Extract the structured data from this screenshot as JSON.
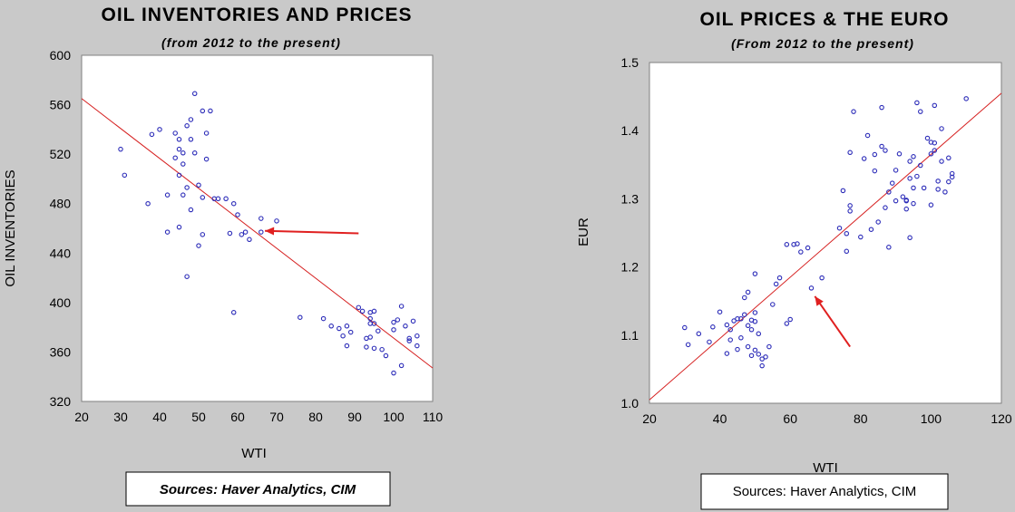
{
  "chart_data": [
    {
      "type": "scatter",
      "title": "OIL INVENTORIES AND PRICES",
      "subtitle": "(from 2012 to the present)",
      "xlabel": "WTI",
      "ylabel": "OIL INVENTORIES",
      "xlim": [
        20,
        110
      ],
      "ylim": [
        320,
        600
      ],
      "xticks": [
        20,
        30,
        40,
        50,
        60,
        70,
        80,
        90,
        100,
        110
      ],
      "yticks": [
        320,
        360,
        400,
        440,
        480,
        520,
        560,
        600
      ],
      "source": "Sources:  Haver Analytics, CIM",
      "grid": false,
      "marker_color": "#2b2bb8",
      "trend_color": "#d62020",
      "arrow_color": "#e02020",
      "trendline": [
        [
          20,
          565
        ],
        [
          110,
          347
        ]
      ],
      "arrow": {
        "from": [
          91,
          456
        ],
        "to": [
          67,
          458
        ]
      },
      "points": [
        [
          30,
          524
        ],
        [
          31,
          503
        ],
        [
          37,
          480
        ],
        [
          38,
          536
        ],
        [
          40,
          540
        ],
        [
          42,
          457
        ],
        [
          42,
          487
        ],
        [
          44,
          537
        ],
        [
          44,
          517
        ],
        [
          45,
          532
        ],
        [
          45,
          524
        ],
        [
          45,
          503
        ],
        [
          45,
          461
        ],
        [
          46,
          521
        ],
        [
          46,
          487
        ],
        [
          46,
          512
        ],
        [
          47,
          543
        ],
        [
          47,
          421
        ],
        [
          47,
          493
        ],
        [
          48,
          548
        ],
        [
          48,
          532
        ],
        [
          48,
          475
        ],
        [
          49,
          569
        ],
        [
          49,
          521
        ],
        [
          50,
          495
        ],
        [
          50,
          446
        ],
        [
          51,
          455
        ],
        [
          51,
          555
        ],
        [
          51,
          485
        ],
        [
          52,
          516
        ],
        [
          52,
          537
        ],
        [
          53,
          555
        ],
        [
          54,
          484
        ],
        [
          55,
          484
        ],
        [
          57,
          484
        ],
        [
          58,
          456
        ],
        [
          59,
          480
        ],
        [
          59,
          392
        ],
        [
          60,
          471
        ],
        [
          61,
          455
        ],
        [
          62,
          457
        ],
        [
          63,
          451
        ],
        [
          66,
          457
        ],
        [
          66,
          468
        ],
        [
          70,
          466
        ],
        [
          76,
          388
        ],
        [
          82,
          387
        ],
        [
          84,
          381
        ],
        [
          86,
          379
        ],
        [
          87,
          373
        ],
        [
          88,
          365
        ],
        [
          88,
          381
        ],
        [
          89,
          376
        ],
        [
          91,
          396
        ],
        [
          92,
          393
        ],
        [
          93,
          371
        ],
        [
          93,
          364
        ],
        [
          94,
          392
        ],
        [
          94,
          387
        ],
        [
          94,
          383
        ],
        [
          94,
          372
        ],
        [
          95,
          363
        ],
        [
          95,
          393
        ],
        [
          95,
          383
        ],
        [
          96,
          377
        ],
        [
          97,
          362
        ],
        [
          98,
          357
        ],
        [
          100,
          343
        ],
        [
          100,
          384
        ],
        [
          100,
          378
        ],
        [
          101,
          386
        ],
        [
          102,
          397
        ],
        [
          102,
          349
        ],
        [
          103,
          381
        ],
        [
          104,
          371
        ],
        [
          104,
          369
        ],
        [
          105,
          385
        ],
        [
          106,
          373
        ],
        [
          106,
          365
        ]
      ]
    },
    {
      "type": "scatter",
      "title": "OIL PRICES & THE EURO",
      "subtitle": "(From 2012 to the present)",
      "xlabel": "WTI",
      "ylabel": "EUR",
      "xlim": [
        20,
        120
      ],
      "ylim": [
        1.0,
        1.5
      ],
      "xticks": [
        20,
        40,
        60,
        80,
        100,
        120
      ],
      "yticks": [
        1.0,
        1.1,
        1.2,
        1.3,
        1.4,
        1.5
      ],
      "source": "Sources:  Haver Analytics, CIM",
      "grid": false,
      "marker_color": "#2b2bb8",
      "trend_color": "#d62020",
      "arrow_color": "#e02020",
      "trendline": [
        [
          20,
          1.005
        ],
        [
          120,
          1.455
        ]
      ],
      "arrow": {
        "from": [
          77,
          1.083
        ],
        "to": [
          67,
          1.157
        ]
      },
      "points": [
        [
          30,
          1.111
        ],
        [
          31,
          1.086
        ],
        [
          34,
          1.102
        ],
        [
          37,
          1.09
        ],
        [
          38,
          1.112
        ],
        [
          40,
          1.134
        ],
        [
          42,
          1.073
        ],
        [
          42,
          1.115
        ],
        [
          43,
          1.093
        ],
        [
          43,
          1.108
        ],
        [
          44,
          1.121
        ],
        [
          45,
          1.124
        ],
        [
          45,
          1.079
        ],
        [
          46,
          1.124
        ],
        [
          46,
          1.096
        ],
        [
          47,
          1.13
        ],
        [
          47,
          1.155
        ],
        [
          48,
          1.163
        ],
        [
          48,
          1.083
        ],
        [
          48,
          1.114
        ],
        [
          49,
          1.122
        ],
        [
          49,
          1.07
        ],
        [
          49,
          1.108
        ],
        [
          50,
          1.19
        ],
        [
          50,
          1.078
        ],
        [
          50,
          1.12
        ],
        [
          50,
          1.133
        ],
        [
          51,
          1.102
        ],
        [
          51,
          1.072
        ],
        [
          52,
          1.055
        ],
        [
          52,
          1.065
        ],
        [
          53,
          1.068
        ],
        [
          54,
          1.083
        ],
        [
          55,
          1.145
        ],
        [
          56,
          1.175
        ],
        [
          57,
          1.184
        ],
        [
          59,
          1.117
        ],
        [
          59,
          1.233
        ],
        [
          60,
          1.123
        ],
        [
          61,
          1.233
        ],
        [
          62,
          1.234
        ],
        [
          63,
          1.222
        ],
        [
          65,
          1.228
        ],
        [
          66,
          1.169
        ],
        [
          69,
          1.184
        ],
        [
          74,
          1.257
        ],
        [
          75,
          1.312
        ],
        [
          76,
          1.223
        ],
        [
          76,
          1.249
        ],
        [
          77,
          1.282
        ],
        [
          77,
          1.29
        ],
        [
          77,
          1.368
        ],
        [
          78,
          1.428
        ],
        [
          80,
          1.244
        ],
        [
          81,
          1.359
        ],
        [
          82,
          1.393
        ],
        [
          83,
          1.255
        ],
        [
          84,
          1.365
        ],
        [
          84,
          1.341
        ],
        [
          85,
          1.266
        ],
        [
          86,
          1.377
        ],
        [
          86,
          1.434
        ],
        [
          87,
          1.371
        ],
        [
          87,
          1.287
        ],
        [
          88,
          1.31
        ],
        [
          88,
          1.229
        ],
        [
          89,
          1.323
        ],
        [
          90,
          1.297
        ],
        [
          90,
          1.342
        ],
        [
          91,
          1.366
        ],
        [
          92,
          1.303
        ],
        [
          93,
          1.297
        ],
        [
          93,
          1.298
        ],
        [
          93,
          1.285
        ],
        [
          94,
          1.355
        ],
        [
          94,
          1.33
        ],
        [
          94,
          1.243
        ],
        [
          95,
          1.293
        ],
        [
          95,
          1.316
        ],
        [
          95,
          1.362
        ],
        [
          96,
          1.441
        ],
        [
          96,
          1.333
        ],
        [
          97,
          1.428
        ],
        [
          97,
          1.349
        ],
        [
          98,
          1.316
        ],
        [
          99,
          1.389
        ],
        [
          100,
          1.291
        ],
        [
          100,
          1.383
        ],
        [
          100,
          1.366
        ],
        [
          101,
          1.437
        ],
        [
          101,
          1.371
        ],
        [
          101,
          1.382
        ],
        [
          102,
          1.314
        ],
        [
          102,
          1.326
        ],
        [
          103,
          1.403
        ],
        [
          103,
          1.355
        ],
        [
          104,
          1.31
        ],
        [
          105,
          1.325
        ],
        [
          105,
          1.36
        ],
        [
          106,
          1.337
        ],
        [
          106,
          1.332
        ],
        [
          110,
          1.447
        ]
      ]
    }
  ]
}
